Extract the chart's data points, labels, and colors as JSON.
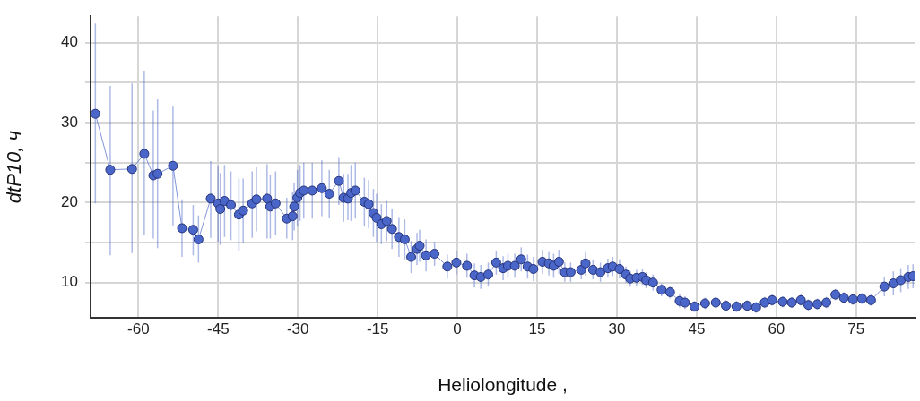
{
  "chart_data": {
    "type": "line",
    "xlabel": "Heliolongitude ,",
    "ylabel": "dtP10, ч",
    "xlim": [
      -69,
      86
    ],
    "xticks": [
      -60,
      -45,
      -30,
      -15,
      0,
      15,
      30,
      45,
      60,
      75
    ],
    "ylim": [
      5.6,
      43.3
    ],
    "yticks": [
      10,
      {
        "value": 15,
        "label": null
      },
      20,
      {
        "value": 25,
        "label": null
      },
      30,
      {
        "value": 35,
        "label": null
      },
      40
    ],
    "grid": true,
    "legend": false,
    "marker": "circle",
    "line_style": "solid",
    "series": [
      {
        "color": "#4a66c8",
        "x": [
          -68.1,
          -65.3,
          -61.2,
          -58.9,
          -57.2,
          -56.4,
          -53.5,
          -51.8,
          -49.7,
          -48.7,
          -46.4,
          -45.0,
          -44.6,
          -43.8,
          -42.6,
          -41.1,
          -40.3,
          -38.6,
          -37.8,
          -35.8,
          -35.2,
          -34.2,
          -32.1,
          -31.0,
          -30.7,
          -30.1,
          -29.6,
          -28.9,
          -27.3,
          -25.5,
          -24.1,
          -22.3,
          -21.4,
          -20.6,
          -20.0,
          -19.2,
          -17.5,
          -16.7,
          -15.8,
          -15.2,
          -14.3,
          -13.3,
          -12.3,
          -11.0,
          -9.9,
          -8.7,
          -7.6,
          -7.1,
          -5.9,
          -4.3,
          -1.9,
          -0.2,
          1.8,
          3.2,
          4.4,
          5.8,
          7.3,
          8.6,
          9.5,
          10.8,
          12.0,
          13.2,
          14.3,
          16.0,
          17.2,
          18.1,
          19.1,
          20.2,
          21.3,
          23.3,
          24.1,
          25.5,
          26.9,
          28.3,
          29.2,
          30.5,
          31.7,
          32.5,
          33.7,
          34.8,
          35.5,
          36.8,
          38.4,
          40.0,
          41.8,
          42.8,
          44.6,
          46.6,
          48.6,
          50.5,
          52.5,
          54.5,
          56.2,
          57.8,
          59.2,
          61.2,
          62.9,
          64.6,
          66.0,
          67.7,
          69.4,
          71.1,
          72.7,
          74.4,
          76.1,
          77.8,
          80.3,
          82.0,
          83.4,
          84.8,
          85.7
        ],
        "values": [
          31.1,
          24.1,
          24.2,
          26.1,
          23.4,
          23.6,
          24.6,
          16.8,
          16.6,
          15.4,
          20.5,
          19.9,
          19.2,
          20.2,
          19.7,
          18.5,
          19.0,
          19.9,
          20.4,
          20.5,
          19.5,
          19.9,
          18.0,
          18.3,
          19.5,
          20.6,
          21.2,
          21.5,
          21.5,
          21.8,
          21.1,
          22.7,
          20.6,
          20.5,
          21.2,
          21.5,
          20.1,
          19.8,
          18.7,
          18.1,
          17.3,
          17.7,
          16.7,
          15.7,
          15.4,
          13.2,
          14.2,
          14.6,
          13.4,
          13.6,
          12.0,
          12.5,
          12.1,
          10.9,
          10.7,
          11.0,
          12.5,
          11.8,
          12.1,
          12.1,
          12.9,
          12.0,
          11.7,
          12.6,
          12.4,
          12.1,
          12.6,
          11.3,
          11.3,
          11.6,
          12.4,
          11.6,
          11.3,
          11.8,
          12.0,
          11.7,
          11.0,
          10.5,
          10.6,
          10.7,
          10.3,
          10.0,
          9.1,
          8.8,
          7.7,
          7.5,
          7.0,
          7.4,
          7.5,
          7.1,
          7.0,
          7.1,
          6.9,
          7.5,
          7.8,
          7.6,
          7.5,
          7.8,
          7.2,
          7.3,
          7.5,
          8.5,
          8.1,
          7.9,
          8.0,
          7.8,
          9.5,
          9.9,
          10.3,
          10.7,
          10.8
        ],
        "errors": [
          [
            19.9,
            42.4
          ],
          [
            13.4,
            34.6
          ],
          [
            13.7,
            34.9
          ],
          [
            15.9,
            36.5
          ],
          [
            15.5,
            31.5
          ],
          [
            14.3,
            32.9
          ],
          [
            17.1,
            32.1
          ],
          [
            13.2,
            20.4
          ],
          [
            13.4,
            19.7
          ],
          [
            12.5,
            18.4
          ],
          [
            15.6,
            25.2
          ],
          [
            15.1,
            24.5
          ],
          4.5,
          4.5,
          [
            15.3,
            23.9
          ],
          [
            14.0,
            23.0
          ],
          4,
          [
            15.6,
            23.9
          ],
          4,
          [
            15.5,
            24.8
          ],
          4,
          4,
          [
            15.5,
            20.6
          ],
          3,
          3,
          3.5,
          3.5,
          3.5,
          3.5,
          3.5,
          3,
          3,
          3,
          [
            17.8,
            23.6
          ],
          3.5,
          3.5,
          3,
          3,
          3,
          3,
          2.5,
          2.5,
          2.5,
          2.5,
          2.5,
          2,
          2,
          2,
          2,
          1.5,
          1.5,
          1.5,
          1.5,
          1.5,
          1.5,
          1.5,
          1.5,
          1.5,
          1.5,
          1.5,
          1.5,
          1.5,
          1.5,
          1.5,
          1.5,
          1.5,
          1.5,
          1.2,
          1.2,
          1.2,
          1.5,
          1.2,
          1.2,
          1.2,
          1.2,
          1.2,
          1,
          1,
          1,
          1,
          1,
          1,
          0.8,
          0.8,
          0.8,
          0.8,
          0.7,
          0.7,
          0.7,
          0.7,
          0.7,
          0.7,
          0.7,
          0.7,
          0.7,
          0.7,
          0.7,
          0.7,
          0.7,
          0.7,
          0.7,
          0.7,
          0.7,
          0.7,
          0.7,
          0.7,
          1.2,
          1.5,
          1.5,
          1.5,
          1.5
        ]
      }
    ]
  }
}
